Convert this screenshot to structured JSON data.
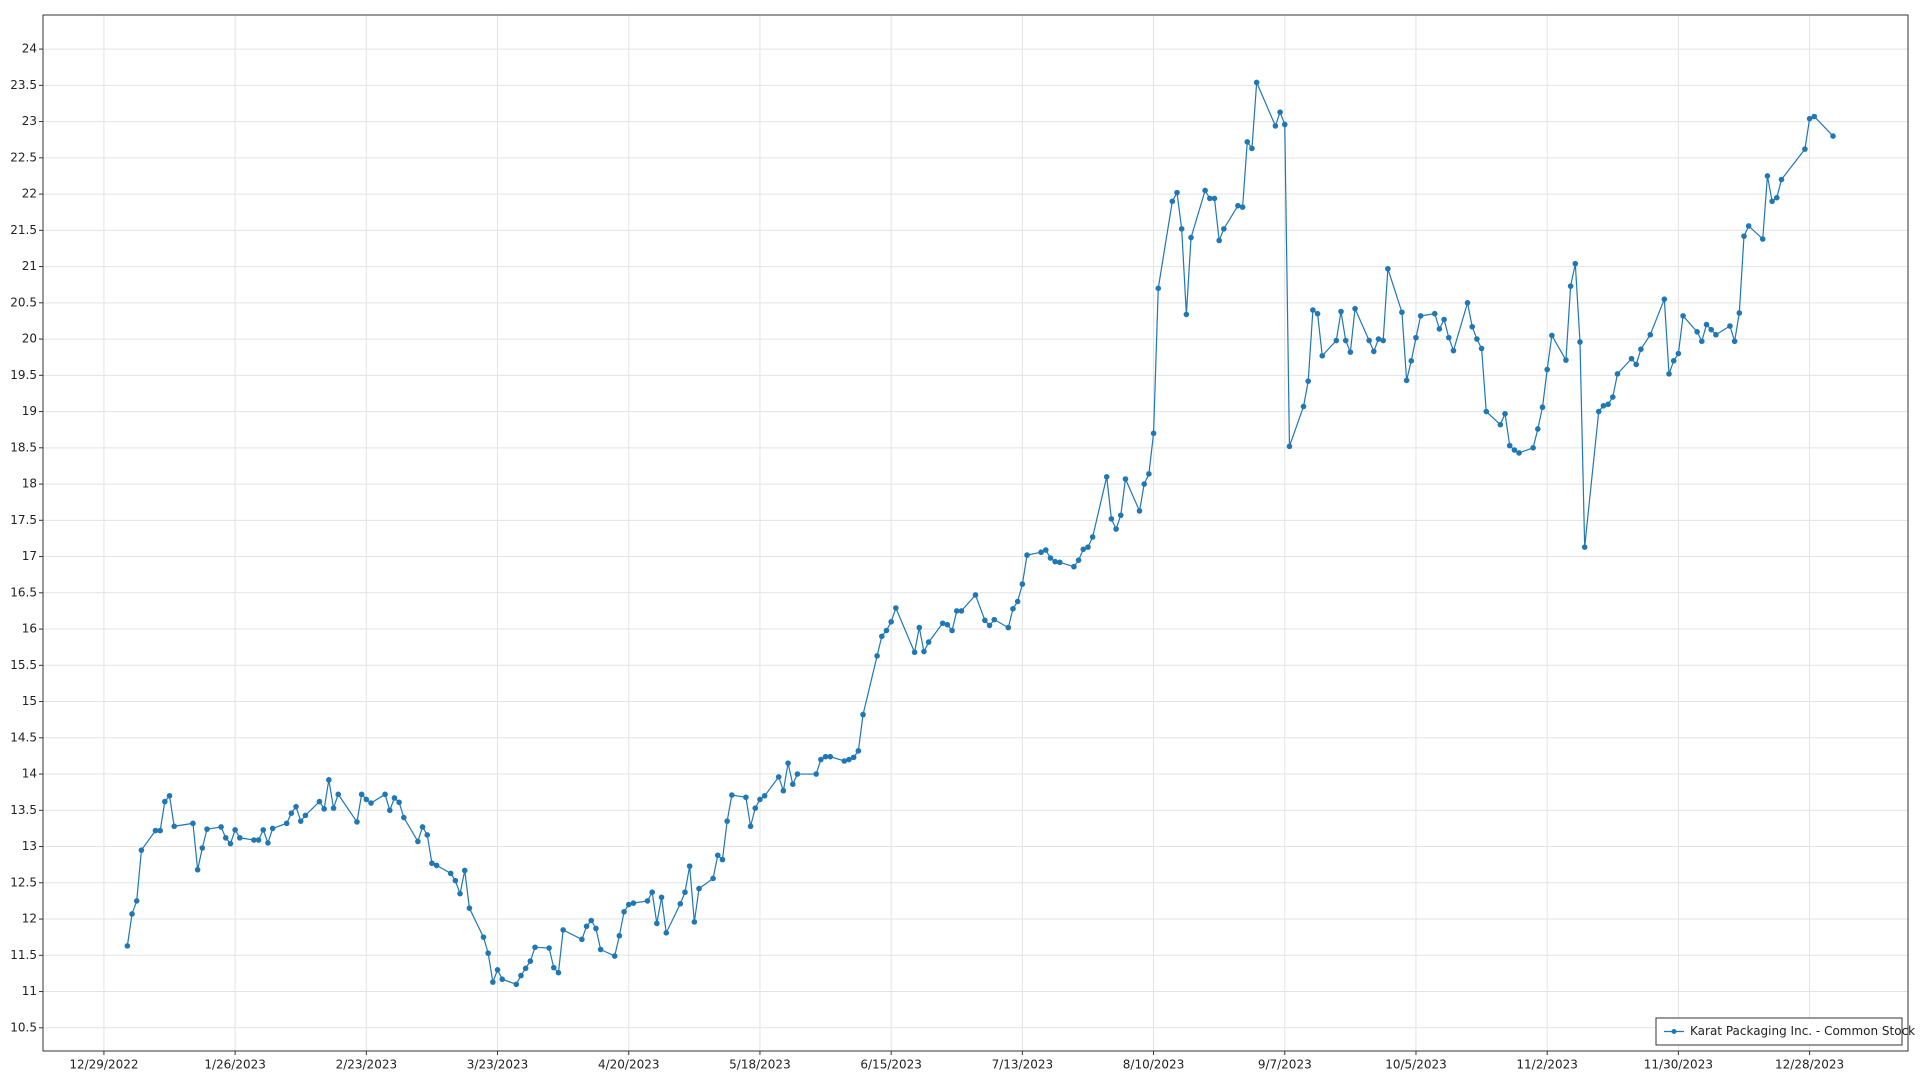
{
  "chart_data": {
    "type": "line",
    "series": [
      {
        "name": "Karat Packaging Inc. - Common Stock",
        "color": "#1f77b4",
        "x": [
          "1/3/2023",
          "1/4/2023",
          "1/5/2023",
          "1/6/2023",
          "1/9/2023",
          "1/10/2023",
          "1/11/2023",
          "1/12/2023",
          "1/13/2023",
          "1/17/2023",
          "1/18/2023",
          "1/19/2023",
          "1/20/2023",
          "1/23/2023",
          "1/24/2023",
          "1/25/2023",
          "1/26/2023",
          "1/27/2023",
          "1/30/2023",
          "1/31/2023",
          "2/1/2023",
          "2/2/2023",
          "2/3/2023",
          "2/6/2023",
          "2/7/2023",
          "2/8/2023",
          "2/9/2023",
          "2/10/2023",
          "2/13/2023",
          "2/14/2023",
          "2/15/2023",
          "2/16/2023",
          "2/17/2023",
          "2/21/2023",
          "2/22/2023",
          "2/23/2023",
          "2/24/2023",
          "2/27/2023",
          "2/28/2023",
          "3/1/2023",
          "3/2/2023",
          "3/3/2023",
          "3/6/2023",
          "3/7/2023",
          "3/8/2023",
          "3/9/2023",
          "3/10/2023",
          "3/13/2023",
          "3/14/2023",
          "3/15/2023",
          "3/16/2023",
          "3/17/2023",
          "3/20/2023",
          "3/21/2023",
          "3/22/2023",
          "3/23/2023",
          "3/24/2023",
          "3/27/2023",
          "3/28/2023",
          "3/29/2023",
          "3/30/2023",
          "3/31/2023",
          "4/3/2023",
          "4/4/2023",
          "4/5/2023",
          "4/6/2023",
          "4/10/2023",
          "4/11/2023",
          "4/12/2023",
          "4/13/2023",
          "4/14/2023",
          "4/17/2023",
          "4/18/2023",
          "4/19/2023",
          "4/20/2023",
          "4/21/2023",
          "4/24/2023",
          "4/25/2023",
          "4/26/2023",
          "4/27/2023",
          "4/28/2023",
          "5/1/2023",
          "5/2/2023",
          "5/3/2023",
          "5/4/2023",
          "5/5/2023",
          "5/8/2023",
          "5/9/2023",
          "5/10/2023",
          "5/11/2023",
          "5/12/2023",
          "5/15/2023",
          "5/16/2023",
          "5/17/2023",
          "5/18/2023",
          "5/19/2023",
          "5/22/2023",
          "5/23/2023",
          "5/24/2023",
          "5/25/2023",
          "5/26/2023",
          "5/30/2023",
          "5/31/2023",
          "6/1/2023",
          "6/2/2023",
          "6/5/2023",
          "6/6/2023",
          "6/7/2023",
          "6/8/2023",
          "6/9/2023",
          "6/12/2023",
          "6/13/2023",
          "6/14/2023",
          "6/15/2023",
          "6/16/2023",
          "6/20/2023",
          "6/21/2023",
          "6/22/2023",
          "6/23/2023",
          "6/26/2023",
          "6/27/2023",
          "6/28/2023",
          "6/29/2023",
          "6/30/2023",
          "7/3/2023",
          "7/5/2023",
          "7/6/2023",
          "7/7/2023",
          "7/10/2023",
          "7/11/2023",
          "7/12/2023",
          "7/13/2023",
          "7/14/2023",
          "7/17/2023",
          "7/18/2023",
          "7/19/2023",
          "7/20/2023",
          "7/21/2023",
          "7/24/2023",
          "7/25/2023",
          "7/26/2023",
          "7/27/2023",
          "7/28/2023",
          "7/31/2023",
          "8/1/2023",
          "8/2/2023",
          "8/3/2023",
          "8/4/2023",
          "8/7/2023",
          "8/8/2023",
          "8/9/2023",
          "8/10/2023",
          "8/11/2023",
          "8/14/2023",
          "8/15/2023",
          "8/16/2023",
          "8/17/2023",
          "8/18/2023",
          "8/21/2023",
          "8/22/2023",
          "8/23/2023",
          "8/24/2023",
          "8/25/2023",
          "8/28/2023",
          "8/29/2023",
          "8/30/2023",
          "8/31/2023",
          "9/1/2023",
          "9/5/2023",
          "9/6/2023",
          "9/7/2023",
          "9/8/2023",
          "9/11/2023",
          "9/12/2023",
          "9/13/2023",
          "9/14/2023",
          "9/15/2023",
          "9/18/2023",
          "9/19/2023",
          "9/20/2023",
          "9/21/2023",
          "9/22/2023",
          "9/25/2023",
          "9/26/2023",
          "9/27/2023",
          "9/28/2023",
          "9/29/2023",
          "10/2/2023",
          "10/3/2023",
          "10/4/2023",
          "10/5/2023",
          "10/6/2023",
          "10/9/2023",
          "10/10/2023",
          "10/11/2023",
          "10/12/2023",
          "10/13/2023",
          "10/16/2023",
          "10/17/2023",
          "10/18/2023",
          "10/19/2023",
          "10/20/2023",
          "10/23/2023",
          "10/24/2023",
          "10/25/2023",
          "10/26/2023",
          "10/27/2023",
          "10/30/2023",
          "10/31/2023",
          "11/1/2023",
          "11/2/2023",
          "11/3/2023",
          "11/6/2023",
          "11/7/2023",
          "11/8/2023",
          "11/9/2023",
          "11/10/2023",
          "11/13/2023",
          "11/14/2023",
          "11/15/2023",
          "11/16/2023",
          "11/17/2023",
          "11/20/2023",
          "11/21/2023",
          "11/22/2023",
          "11/24/2023",
          "11/27/2023",
          "11/28/2023",
          "11/29/2023",
          "11/30/2023",
          "12/1/2023",
          "12/4/2023",
          "12/5/2023",
          "12/6/2023",
          "12/7/2023",
          "12/8/2023",
          "12/11/2023",
          "12/12/2023",
          "12/13/2023",
          "12/14/2023",
          "12/15/2023",
          "12/18/2023",
          "12/19/2023",
          "12/20/2023",
          "12/21/2023",
          "12/22/2023",
          "12/27/2023",
          "12/28/2023",
          "12/29/2023",
          "1/2/2024"
        ],
        "values": [
          11.63,
          12.07,
          12.25,
          12.95,
          13.22,
          13.22,
          13.62,
          13.7,
          13.28,
          13.32,
          12.68,
          12.98,
          13.24,
          13.27,
          13.12,
          13.04,
          13.23,
          13.12,
          13.09,
          13.09,
          13.23,
          13.05,
          13.25,
          13.32,
          13.46,
          13.55,
          13.35,
          13.43,
          13.62,
          13.52,
          13.92,
          13.53,
          13.72,
          13.34,
          13.72,
          13.65,
          13.6,
          13.72,
          13.5,
          13.67,
          13.61,
          13.4,
          13.07,
          13.27,
          13.16,
          12.77,
          12.74,
          12.63,
          12.53,
          12.35,
          12.67,
          12.15,
          11.75,
          11.53,
          11.13,
          11.3,
          11.17,
          11.1,
          11.22,
          11.32,
          11.42,
          11.61,
          11.6,
          11.33,
          11.26,
          11.85,
          11.72,
          11.9,
          11.98,
          11.87,
          11.58,
          11.49,
          11.77,
          12.1,
          12.2,
          12.22,
          12.25,
          12.37,
          11.94,
          12.3,
          11.81,
          12.21,
          12.37,
          12.73,
          11.96,
          12.42,
          12.56,
          12.88,
          12.82,
          13.35,
          13.71,
          13.68,
          13.28,
          13.53,
          13.65,
          13.7,
          13.96,
          13.77,
          14.15,
          13.86,
          14.0,
          14.0,
          14.2,
          14.24,
          14.24,
          14.18,
          14.2,
          14.23,
          14.32,
          14.82,
          15.63,
          15.9,
          15.98,
          16.1,
          16.29,
          15.68,
          16.02,
          15.69,
          15.82,
          16.08,
          16.06,
          15.98,
          16.25,
          16.25,
          16.47,
          16.12,
          16.05,
          16.13,
          16.02,
          16.28,
          16.38,
          16.62,
          17.02,
          17.06,
          17.09,
          16.98,
          16.93,
          16.92,
          16.86,
          16.95,
          17.1,
          17.13,
          17.27,
          18.1,
          17.52,
          17.38,
          17.57,
          18.07,
          17.63,
          18.0,
          18.14,
          18.7,
          20.7,
          21.9,
          22.02,
          21.52,
          20.34,
          21.4,
          22.05,
          21.94,
          21.94,
          21.36,
          21.52,
          21.84,
          21.82,
          22.72,
          22.63,
          23.54,
          22.94,
          23.13,
          22.96,
          18.52,
          19.07,
          19.42,
          20.4,
          20.35,
          19.77,
          19.98,
          20.38,
          19.98,
          19.82,
          20.42,
          19.98,
          19.83,
          20.0,
          19.98,
          20.97,
          20.37,
          19.43,
          19.7,
          20.02,
          20.32,
          20.35,
          20.14,
          20.27,
          20.02,
          19.84,
          20.5,
          20.17,
          20.0,
          19.87,
          19.0,
          18.82,
          18.97,
          18.53,
          18.47,
          18.43,
          18.5,
          18.76,
          19.06,
          19.58,
          20.05,
          19.71,
          20.73,
          21.04,
          19.96,
          17.13,
          19.0,
          19.08,
          19.1,
          19.2,
          19.52,
          19.73,
          19.65,
          19.86,
          20.06,
          20.55,
          19.52,
          19.7,
          19.8,
          20.32,
          20.1,
          19.97,
          20.2,
          20.13,
          20.06,
          20.18,
          19.97,
          20.36,
          21.42,
          21.56,
          21.38,
          22.25,
          21.9,
          21.95,
          22.2,
          22.62,
          23.04,
          23.07,
          22.8
        ]
      }
    ],
    "xlim": [
      "12/16/2022",
      "1/18/2024"
    ],
    "xticks": [
      "12/29/2022",
      "1/26/2023",
      "2/23/2023",
      "3/23/2023",
      "4/20/2023",
      "5/18/2023",
      "6/15/2023",
      "7/13/2023",
      "8/10/2023",
      "9/7/2023",
      "10/5/2023",
      "11/2/2023",
      "11/30/2023",
      "12/28/2023"
    ],
    "ylim": [
      10.18,
      24.47
    ],
    "yticks": [
      10.5,
      11,
      11.5,
      12,
      12.5,
      13,
      13.5,
      14,
      14.5,
      15,
      15.5,
      16,
      16.5,
      17,
      17.5,
      18,
      18.5,
      19,
      19.5,
      20,
      20.5,
      21,
      21.5,
      22,
      22.5,
      23,
      23.5,
      24
    ],
    "grid": true,
    "legend": "lower right"
  }
}
